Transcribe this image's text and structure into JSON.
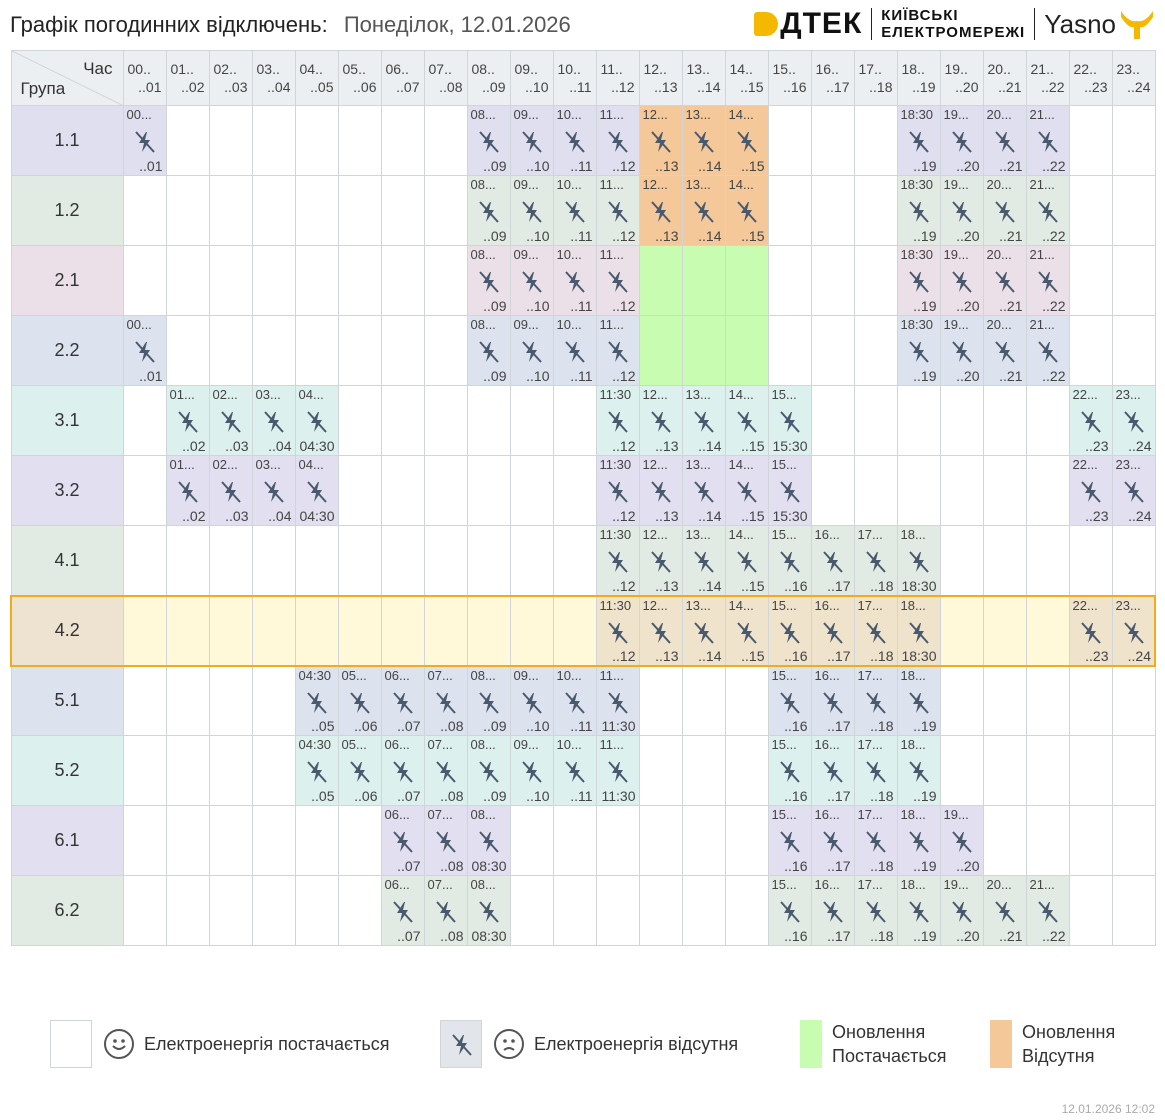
{
  "header": {
    "title": "Графік погодинних відключень:",
    "date": "Понеділок, 12.01.2026"
  },
  "logos": {
    "dtek": "ДТЕК",
    "kyiv_line1": "КИЇВСЬКІ",
    "kyiv_line2": "ЕЛЕКТРОМЕРЕЖІ",
    "yasno": "Yasno"
  },
  "table": {
    "corner_hour": "Час",
    "corner_group": "Група",
    "hours": [
      {
        "a": "00..",
        "b": "..01"
      },
      {
        "a": "01..",
        "b": "..02"
      },
      {
        "a": "02..",
        "b": "..03"
      },
      {
        "a": "03..",
        "b": "..04"
      },
      {
        "a": "04..",
        "b": "..05"
      },
      {
        "a": "05..",
        "b": "..06"
      },
      {
        "a": "06..",
        "b": "..07"
      },
      {
        "a": "07..",
        "b": "..08"
      },
      {
        "a": "08..",
        "b": "..09"
      },
      {
        "a": "09..",
        "b": "..10"
      },
      {
        "a": "10..",
        "b": "..11"
      },
      {
        "a": "11..",
        "b": "..12"
      },
      {
        "a": "12..",
        "b": "..13"
      },
      {
        "a": "13..",
        "b": "..14"
      },
      {
        "a": "14..",
        "b": "..15"
      },
      {
        "a": "15..",
        "b": "..16"
      },
      {
        "a": "16..",
        "b": "..17"
      },
      {
        "a": "17..",
        "b": "..18"
      },
      {
        "a": "18..",
        "b": "..19"
      },
      {
        "a": "19..",
        "b": "..20"
      },
      {
        "a": "20..",
        "b": "..21"
      },
      {
        "a": "21..",
        "b": "..22"
      },
      {
        "a": "22..",
        "b": "..23"
      },
      {
        "a": "23..",
        "b": "..24"
      }
    ],
    "groups": [
      {
        "name": "1.1",
        "color": "#dfdff0",
        "highlight": false,
        "cells": [
          {
            "h": 0,
            "t": "off",
            "s": "00...",
            "e": "..01"
          },
          {
            "h": 8,
            "t": "off",
            "s": "08...",
            "e": "..09"
          },
          {
            "h": 9,
            "t": "off",
            "s": "09...",
            "e": "..10"
          },
          {
            "h": 10,
            "t": "off",
            "s": "10...",
            "e": "..11"
          },
          {
            "h": 11,
            "t": "off",
            "s": "11...",
            "e": "..12"
          },
          {
            "h": 12,
            "t": "upd_off",
            "s": "12...",
            "e": "..13"
          },
          {
            "h": 13,
            "t": "upd_off",
            "s": "13...",
            "e": "..14"
          },
          {
            "h": 14,
            "t": "upd_off",
            "s": "14...",
            "e": "..15"
          },
          {
            "h": 18,
            "t": "off",
            "s": "18:30",
            "e": "..19"
          },
          {
            "h": 19,
            "t": "off",
            "s": "19...",
            "e": "..20"
          },
          {
            "h": 20,
            "t": "off",
            "s": "20...",
            "e": "..21"
          },
          {
            "h": 21,
            "t": "off",
            "s": "21...",
            "e": "..22"
          }
        ]
      },
      {
        "name": "1.2",
        "color": "#e2ebe3",
        "highlight": false,
        "cells": [
          {
            "h": 8,
            "t": "off",
            "s": "08...",
            "e": "..09"
          },
          {
            "h": 9,
            "t": "off",
            "s": "09...",
            "e": "..10"
          },
          {
            "h": 10,
            "t": "off",
            "s": "10...",
            "e": "..11"
          },
          {
            "h": 11,
            "t": "off",
            "s": "11...",
            "e": "..12"
          },
          {
            "h": 12,
            "t": "upd_off",
            "s": "12...",
            "e": "..13"
          },
          {
            "h": 13,
            "t": "upd_off",
            "s": "13...",
            "e": "..14"
          },
          {
            "h": 14,
            "t": "upd_off",
            "s": "14...",
            "e": "..15"
          },
          {
            "h": 18,
            "t": "off",
            "s": "18:30",
            "e": "..19"
          },
          {
            "h": 19,
            "t": "off",
            "s": "19...",
            "e": "..20"
          },
          {
            "h": 20,
            "t": "off",
            "s": "20...",
            "e": "..21"
          },
          {
            "h": 21,
            "t": "off",
            "s": "21...",
            "e": "..22"
          }
        ]
      },
      {
        "name": "2.1",
        "color": "#ece0e8",
        "highlight": false,
        "cells": [
          {
            "h": 8,
            "t": "off",
            "s": "08...",
            "e": "..09"
          },
          {
            "h": 9,
            "t": "off",
            "s": "09...",
            "e": "..10"
          },
          {
            "h": 10,
            "t": "off",
            "s": "10...",
            "e": "..11"
          },
          {
            "h": 11,
            "t": "off",
            "s": "11...",
            "e": "..12"
          },
          {
            "h": 12,
            "t": "upd_on"
          },
          {
            "h": 13,
            "t": "upd_on"
          },
          {
            "h": 14,
            "t": "upd_on"
          },
          {
            "h": 18,
            "t": "off",
            "s": "18:30",
            "e": "..19"
          },
          {
            "h": 19,
            "t": "off",
            "s": "19...",
            "e": "..20"
          },
          {
            "h": 20,
            "t": "off",
            "s": "20...",
            "e": "..21"
          },
          {
            "h": 21,
            "t": "off",
            "s": "21...",
            "e": "..22"
          }
        ]
      },
      {
        "name": "2.2",
        "color": "#dde3ee",
        "highlight": false,
        "cells": [
          {
            "h": 0,
            "t": "off",
            "s": "00...",
            "e": "..01"
          },
          {
            "h": 8,
            "t": "off",
            "s": "08...",
            "e": "..09"
          },
          {
            "h": 9,
            "t": "off",
            "s": "09...",
            "e": "..10"
          },
          {
            "h": 10,
            "t": "off",
            "s": "10...",
            "e": "..11"
          },
          {
            "h": 11,
            "t": "off",
            "s": "11...",
            "e": "..12"
          },
          {
            "h": 12,
            "t": "upd_on"
          },
          {
            "h": 13,
            "t": "upd_on"
          },
          {
            "h": 14,
            "t": "upd_on"
          },
          {
            "h": 18,
            "t": "off",
            "s": "18:30",
            "e": "..19"
          },
          {
            "h": 19,
            "t": "off",
            "s": "19...",
            "e": "..20"
          },
          {
            "h": 20,
            "t": "off",
            "s": "20...",
            "e": "..21"
          },
          {
            "h": 21,
            "t": "off",
            "s": "21...",
            "e": "..22"
          }
        ]
      },
      {
        "name": "3.1",
        "color": "#dcf0ee",
        "highlight": false,
        "cells": [
          {
            "h": 1,
            "t": "off",
            "s": "01...",
            "e": "..02"
          },
          {
            "h": 2,
            "t": "off",
            "s": "02...",
            "e": "..03"
          },
          {
            "h": 3,
            "t": "off",
            "s": "03...",
            "e": "..04"
          },
          {
            "h": 4,
            "t": "off",
            "s": "04...",
            "e": "04:30"
          },
          {
            "h": 11,
            "t": "off",
            "s": "11:30",
            "e": "..12"
          },
          {
            "h": 12,
            "t": "off",
            "s": "12...",
            "e": "..13"
          },
          {
            "h": 13,
            "t": "off",
            "s": "13...",
            "e": "..14"
          },
          {
            "h": 14,
            "t": "off",
            "s": "14...",
            "e": "..15"
          },
          {
            "h": 15,
            "t": "off",
            "s": "15...",
            "e": "15:30"
          },
          {
            "h": 22,
            "t": "off",
            "s": "22...",
            "e": "..23"
          },
          {
            "h": 23,
            "t": "off",
            "s": "23...",
            "e": "..24"
          }
        ]
      },
      {
        "name": "3.2",
        "color": "#e2dff0",
        "highlight": false,
        "cells": [
          {
            "h": 1,
            "t": "off",
            "s": "01...",
            "e": "..02"
          },
          {
            "h": 2,
            "t": "off",
            "s": "02...",
            "e": "..03"
          },
          {
            "h": 3,
            "t": "off",
            "s": "03...",
            "e": "..04"
          },
          {
            "h": 4,
            "t": "off",
            "s": "04...",
            "e": "04:30"
          },
          {
            "h": 11,
            "t": "off",
            "s": "11:30",
            "e": "..12"
          },
          {
            "h": 12,
            "t": "off",
            "s": "12...",
            "e": "..13"
          },
          {
            "h": 13,
            "t": "off",
            "s": "13...",
            "e": "..14"
          },
          {
            "h": 14,
            "t": "off",
            "s": "14...",
            "e": "..15"
          },
          {
            "h": 15,
            "t": "off",
            "s": "15...",
            "e": "15:30"
          },
          {
            "h": 22,
            "t": "off",
            "s": "22...",
            "e": "..23"
          },
          {
            "h": 23,
            "t": "off",
            "s": "23...",
            "e": "..24"
          }
        ]
      },
      {
        "name": "4.1",
        "color": "#e2ebe3",
        "highlight": false,
        "cells": [
          {
            "h": 11,
            "t": "off",
            "s": "11:30",
            "e": "..12"
          },
          {
            "h": 12,
            "t": "off",
            "s": "12...",
            "e": "..13"
          },
          {
            "h": 13,
            "t": "off",
            "s": "13...",
            "e": "..14"
          },
          {
            "h": 14,
            "t": "off",
            "s": "14...",
            "e": "..15"
          },
          {
            "h": 15,
            "t": "off",
            "s": "15...",
            "e": "..16"
          },
          {
            "h": 16,
            "t": "off",
            "s": "16...",
            "e": "..17"
          },
          {
            "h": 17,
            "t": "off",
            "s": "17...",
            "e": "..18"
          },
          {
            "h": 18,
            "t": "off",
            "s": "18...",
            "e": "18:30"
          }
        ]
      },
      {
        "name": "4.2",
        "color": "#ede3d0",
        "highlight": true,
        "cells": [
          {
            "h": 11,
            "t": "off",
            "s": "11:30",
            "e": "..12"
          },
          {
            "h": 12,
            "t": "off",
            "s": "12...",
            "e": "..13"
          },
          {
            "h": 13,
            "t": "off",
            "s": "13...",
            "e": "..14"
          },
          {
            "h": 14,
            "t": "off",
            "s": "14...",
            "e": "..15"
          },
          {
            "h": 15,
            "t": "off",
            "s": "15...",
            "e": "..16"
          },
          {
            "h": 16,
            "t": "off",
            "s": "16...",
            "e": "..17"
          },
          {
            "h": 17,
            "t": "off",
            "s": "17...",
            "e": "..18"
          },
          {
            "h": 18,
            "t": "off",
            "s": "18...",
            "e": "18:30"
          },
          {
            "h": 22,
            "t": "off",
            "s": "22...",
            "e": "..23"
          },
          {
            "h": 23,
            "t": "off",
            "s": "23...",
            "e": "..24"
          }
        ]
      },
      {
        "name": "5.1",
        "color": "#dde3ee",
        "highlight": false,
        "cells": [
          {
            "h": 4,
            "t": "off",
            "s": "04:30",
            "e": "..05"
          },
          {
            "h": 5,
            "t": "off",
            "s": "05...",
            "e": "..06"
          },
          {
            "h": 6,
            "t": "off",
            "s": "06...",
            "e": "..07"
          },
          {
            "h": 7,
            "t": "off",
            "s": "07...",
            "e": "..08"
          },
          {
            "h": 8,
            "t": "off",
            "s": "08...",
            "e": "..09"
          },
          {
            "h": 9,
            "t": "off",
            "s": "09...",
            "e": "..10"
          },
          {
            "h": 10,
            "t": "off",
            "s": "10...",
            "e": "..11"
          },
          {
            "h": 11,
            "t": "off",
            "s": "11...",
            "e": "11:30"
          },
          {
            "h": 15,
            "t": "off",
            "s": "15...",
            "e": "..16"
          },
          {
            "h": 16,
            "t": "off",
            "s": "16...",
            "e": "..17"
          },
          {
            "h": 17,
            "t": "off",
            "s": "17...",
            "e": "..18"
          },
          {
            "h": 18,
            "t": "off",
            "s": "18...",
            "e": "..19"
          }
        ]
      },
      {
        "name": "5.2",
        "color": "#dcf0ee",
        "highlight": false,
        "cells": [
          {
            "h": 4,
            "t": "off",
            "s": "04:30",
            "e": "..05"
          },
          {
            "h": 5,
            "t": "off",
            "s": "05...",
            "e": "..06"
          },
          {
            "h": 6,
            "t": "off",
            "s": "06...",
            "e": "..07"
          },
          {
            "h": 7,
            "t": "off",
            "s": "07...",
            "e": "..08"
          },
          {
            "h": 8,
            "t": "off",
            "s": "08...",
            "e": "..09"
          },
          {
            "h": 9,
            "t": "off",
            "s": "09...",
            "e": "..10"
          },
          {
            "h": 10,
            "t": "off",
            "s": "10...",
            "e": "..11"
          },
          {
            "h": 11,
            "t": "off",
            "s": "11...",
            "e": "11:30"
          },
          {
            "h": 15,
            "t": "off",
            "s": "15...",
            "e": "..16"
          },
          {
            "h": 16,
            "t": "off",
            "s": "16...",
            "e": "..17"
          },
          {
            "h": 17,
            "t": "off",
            "s": "17...",
            "e": "..18"
          },
          {
            "h": 18,
            "t": "off",
            "s": "18...",
            "e": "..19"
          }
        ]
      },
      {
        "name": "6.1",
        "color": "#e2dff0",
        "highlight": false,
        "cells": [
          {
            "h": 6,
            "t": "off",
            "s": "06...",
            "e": "..07"
          },
          {
            "h": 7,
            "t": "off",
            "s": "07...",
            "e": "..08"
          },
          {
            "h": 8,
            "t": "off",
            "s": "08...",
            "e": "08:30"
          },
          {
            "h": 15,
            "t": "off",
            "s": "15...",
            "e": "..16"
          },
          {
            "h": 16,
            "t": "off",
            "s": "16...",
            "e": "..17"
          },
          {
            "h": 17,
            "t": "off",
            "s": "17...",
            "e": "..18"
          },
          {
            "h": 18,
            "t": "off",
            "s": "18...",
            "e": "..19"
          },
          {
            "h": 19,
            "t": "off",
            "s": "19...",
            "e": "..20"
          }
        ]
      },
      {
        "name": "6.2",
        "color": "#e2ebe3",
        "highlight": false,
        "cells": [
          {
            "h": 6,
            "t": "off",
            "s": "06...",
            "e": "..07"
          },
          {
            "h": 7,
            "t": "off",
            "s": "07...",
            "e": "..08"
          },
          {
            "h": 8,
            "t": "off",
            "s": "08...",
            "e": "08:30"
          },
          {
            "h": 15,
            "t": "off",
            "s": "15...",
            "e": "..16"
          },
          {
            "h": 16,
            "t": "off",
            "s": "16...",
            "e": "..17"
          },
          {
            "h": 17,
            "t": "off",
            "s": "17...",
            "e": "..18"
          },
          {
            "h": 18,
            "t": "off",
            "s": "18...",
            "e": "..19"
          },
          {
            "h": 19,
            "t": "off",
            "s": "19...",
            "e": "..20"
          },
          {
            "h": 20,
            "t": "off",
            "s": "20...",
            "e": "..21"
          },
          {
            "h": 21,
            "t": "off",
            "s": "21...",
            "e": "..22"
          }
        ]
      }
    ]
  },
  "colors": {
    "upd_on": "#c8fcb0",
    "upd_off": "#f5c89a",
    "highlight_row": "#fff9da",
    "highlight_border": "#f0ad1a",
    "icon": "#4a5a6e"
  },
  "legend": {
    "power_on": "Електроенергія постачається",
    "power_off": "Електроенергія відсутня",
    "update_on_line1": "Оновлення",
    "update_on_line2": "Постачається",
    "update_off_line1": "Оновлення",
    "update_off_line2": "Відсутня"
  },
  "footer": {
    "timestamp": "12.01.2026   12:02"
  }
}
